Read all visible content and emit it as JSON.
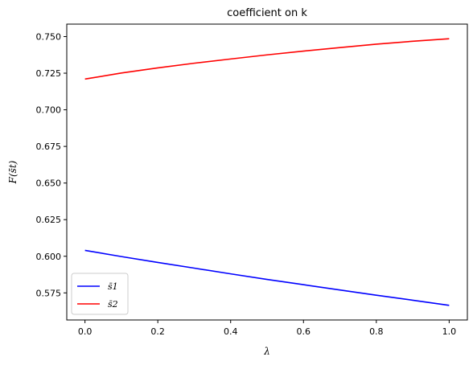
{
  "chart_data": {
    "type": "line",
    "title": "coefficient on k",
    "xlabel": "λ",
    "ylabel": "F(s̄t)",
    "xlim": [
      -0.05,
      1.05
    ],
    "ylim": [
      0.5565,
      0.7585
    ],
    "xticks": [
      0.0,
      0.2,
      0.4,
      0.6,
      0.8,
      1.0
    ],
    "xtick_labels": [
      "0.0",
      "0.2",
      "0.4",
      "0.6",
      "0.8",
      "1.0"
    ],
    "yticks": [
      0.575,
      0.6,
      0.625,
      0.65,
      0.675,
      0.7,
      0.725,
      0.75
    ],
    "ytick_labels": [
      "0.575",
      "0.600",
      "0.625",
      "0.650",
      "0.675",
      "0.700",
      "0.725",
      "0.750"
    ],
    "grid": false,
    "legend_position": "lower-left",
    "series": [
      {
        "name": "s̄1",
        "color": "#0000ff",
        "x": [
          0.0,
          0.1,
          0.2,
          0.3,
          0.4,
          0.5,
          0.6,
          0.7,
          0.8,
          0.9,
          1.0
        ],
        "values": [
          0.604,
          0.5998,
          0.5958,
          0.5919,
          0.588,
          0.5842,
          0.5806,
          0.577,
          0.5734,
          0.57,
          0.5665
        ]
      },
      {
        "name": "s̄2",
        "color": "#ff0000",
        "x": [
          0.0,
          0.1,
          0.2,
          0.3,
          0.4,
          0.5,
          0.6,
          0.7,
          0.8,
          0.9,
          1.0
        ],
        "values": [
          0.721,
          0.7251,
          0.7286,
          0.7318,
          0.7347,
          0.7375,
          0.7401,
          0.7425,
          0.7448,
          0.7468,
          0.7485
        ]
      }
    ]
  }
}
